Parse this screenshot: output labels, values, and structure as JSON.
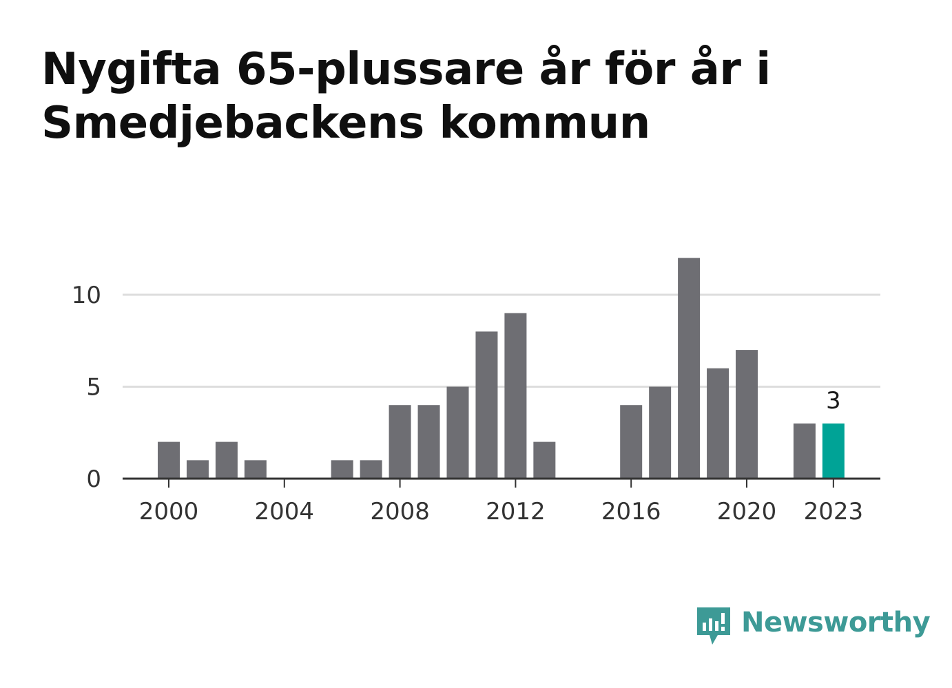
{
  "title": "Nygifta 65-plussare år för år i Smedjebackens kommun",
  "brand": {
    "name": "Newsworthy",
    "icon": "newsworthy-logo-icon",
    "color": "#3d9a96"
  },
  "colors": {
    "bar": "#6e6e73",
    "highlight": "#00a396",
    "grid": "#dddddd",
    "axis": "#333333"
  },
  "chart_data": {
    "type": "bar",
    "categories": [
      "2000",
      "2001",
      "2002",
      "2003",
      "2004",
      "2005",
      "2006",
      "2007",
      "2008",
      "2009",
      "2010",
      "2011",
      "2012",
      "2013",
      "2014",
      "2015",
      "2016",
      "2017",
      "2018",
      "2019",
      "2020",
      "2021",
      "2022",
      "2023"
    ],
    "values": [
      2,
      1,
      2,
      1,
      0,
      0,
      1,
      1,
      4,
      4,
      5,
      8,
      9,
      2,
      0,
      0,
      4,
      5,
      12,
      6,
      7,
      0,
      3,
      3
    ],
    "highlight_category": "2023",
    "highlight_label": "3",
    "x_tick_labels": [
      "2000",
      "2004",
      "2008",
      "2012",
      "2016",
      "2020",
      "2023"
    ],
    "y_ticks": [
      0,
      5,
      10
    ],
    "y_tick_labels": [
      "0",
      "5",
      "10"
    ],
    "ylim": [
      0,
      12
    ],
    "grid": true,
    "xlabel": "",
    "ylabel": ""
  }
}
